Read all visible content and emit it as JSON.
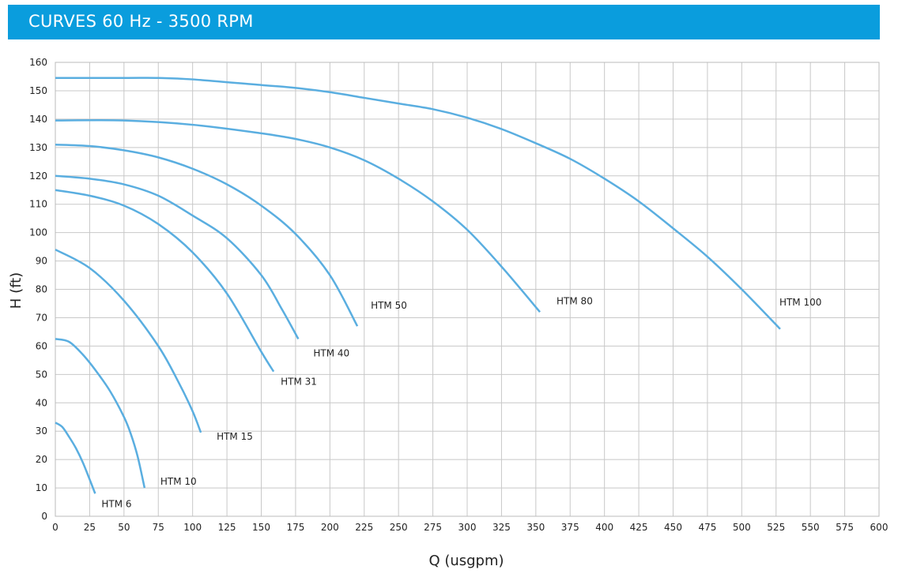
{
  "chart_data": {
    "type": "line",
    "title": "CURVES 60 Hz - 3500 RPM",
    "x_label": "Q (usgpm)",
    "y_label": "H (ft)",
    "xlim": [
      0,
      600
    ],
    "ylim": [
      0,
      160
    ],
    "xticks": [
      0,
      25,
      50,
      75,
      100,
      125,
      150,
      175,
      200,
      225,
      250,
      275,
      300,
      325,
      350,
      375,
      400,
      425,
      450,
      475,
      500,
      525,
      550,
      575,
      600
    ],
    "yticks": [
      0,
      10,
      20,
      30,
      40,
      50,
      60,
      70,
      80,
      90,
      100,
      110,
      120,
      130,
      140,
      150,
      160
    ],
    "grid": true,
    "series": [
      {
        "name": "HTM 6",
        "color": "#5aaee0",
        "x": [
          0,
          5,
          10,
          15,
          20,
          25,
          29
        ],
        "values": [
          33,
          31.5,
          28,
          24,
          19,
          13,
          8
        ]
      },
      {
        "name": "HTM 10",
        "color": "#5aaee0",
        "x": [
          0,
          10,
          20,
          30,
          40,
          50,
          55,
          60,
          65
        ],
        "values": [
          62.5,
          61.5,
          57,
          51,
          44,
          35,
          29,
          21,
          10
        ]
      },
      {
        "name": "HTM 15",
        "color": "#5aaee0",
        "x": [
          0,
          25,
          50,
          75,
          90,
          100,
          106
        ],
        "values": [
          94,
          87.5,
          76,
          60,
          47,
          37,
          29.5
        ]
      },
      {
        "name": "HTM 31",
        "color": "#5aaee0",
        "x": [
          0,
          25,
          50,
          75,
          100,
          125,
          150,
          159
        ],
        "values": [
          115,
          113,
          109.5,
          103,
          93,
          78.5,
          58,
          51
        ]
      },
      {
        "name": "HTM 40",
        "color": "#5aaee0",
        "x": [
          0,
          25,
          50,
          75,
          100,
          125,
          150,
          165,
          177
        ],
        "values": [
          120,
          119,
          117,
          113,
          106,
          98,
          85,
          73,
          62.5
        ]
      },
      {
        "name": "HTM 50",
        "color": "#5aaee0",
        "x": [
          0,
          25,
          50,
          75,
          100,
          125,
          150,
          175,
          200,
          220
        ],
        "values": [
          131,
          130.5,
          129,
          126.5,
          122.5,
          117,
          109.5,
          99.5,
          85,
          67
        ]
      },
      {
        "name": "HTM 80",
        "color": "#5aaee0",
        "x": [
          0,
          50,
          100,
          150,
          175,
          200,
          225,
          250,
          275,
          300,
          325,
          353
        ],
        "values": [
          139.5,
          139.5,
          138,
          135,
          133,
          130,
          125.5,
          119,
          111,
          101,
          88,
          72
        ]
      },
      {
        "name": "HTM 100",
        "color": "#5aaee0",
        "x": [
          0,
          50,
          75,
          100,
          150,
          175,
          200,
          225,
          250,
          275,
          300,
          325,
          350,
          375,
          400,
          425,
          450,
          475,
          500,
          528
        ],
        "values": [
          154.5,
          154.5,
          154.5,
          154,
          152,
          151,
          149.5,
          147.5,
          145.5,
          143.5,
          140.5,
          136.5,
          131.5,
          126,
          119,
          111,
          101.5,
          91.5,
          80,
          66
        ]
      }
    ]
  }
}
